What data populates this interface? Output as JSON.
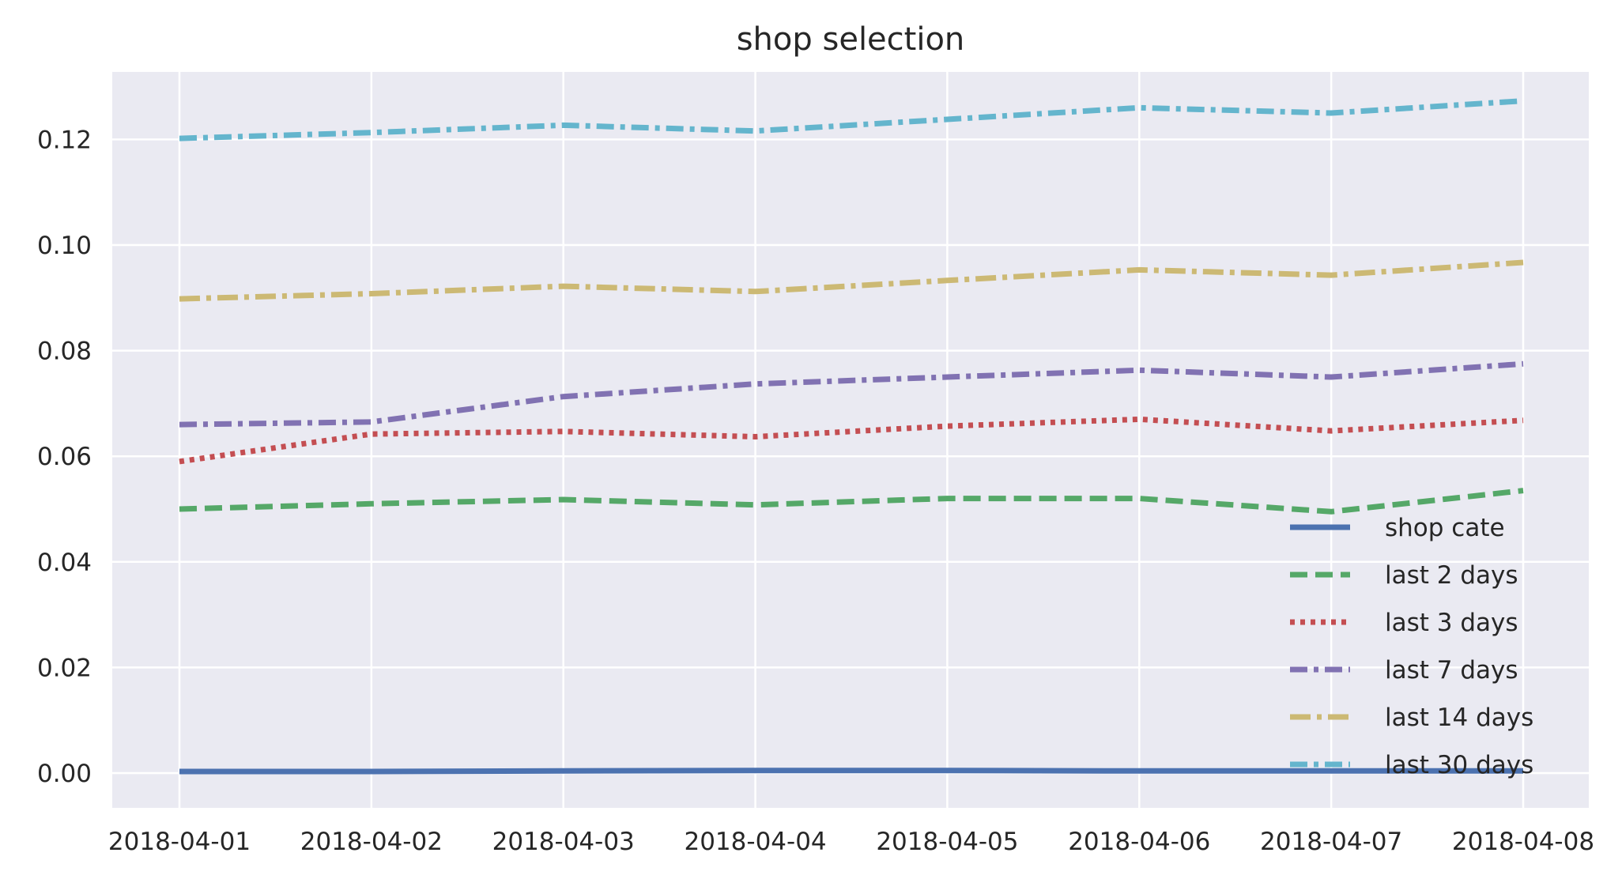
{
  "chart_data": {
    "type": "line",
    "title": "shop selection",
    "xlabel": "",
    "ylabel": "",
    "x": [
      "2018-04-01",
      "2018-04-02",
      "2018-04-03",
      "2018-04-04",
      "2018-04-05",
      "2018-04-06",
      "2018-04-07",
      "2018-04-08"
    ],
    "yticks": [
      "0.00",
      "0.02",
      "0.04",
      "0.06",
      "0.08",
      "0.10",
      "0.12"
    ],
    "ylim": [
      -0.006,
      0.1335
    ],
    "grid": true,
    "legend_position": "lower right",
    "series": [
      {
        "name": "shop cate",
        "color": "#4c72b0",
        "linestyle": "solid",
        "values": [
          0.0003,
          0.0003,
          0.0004,
          0.0005,
          0.0005,
          0.0004,
          0.0004,
          0.0004
        ]
      },
      {
        "name": "last 2 days",
        "color": "#55a868",
        "linestyle": "dashed",
        "values": [
          0.05,
          0.051,
          0.0518,
          0.0508,
          0.052,
          0.052,
          0.0495,
          0.0535
        ]
      },
      {
        "name": "last 3 days",
        "color": "#c44e52",
        "linestyle": "dotted",
        "values": [
          0.059,
          0.0642,
          0.0647,
          0.0637,
          0.0657,
          0.067,
          0.0648,
          0.0668
        ]
      },
      {
        "name": "last 7 days",
        "color": "#8172b2",
        "linestyle": "dashdot",
        "values": [
          0.066,
          0.0665,
          0.0713,
          0.0737,
          0.075,
          0.0763,
          0.075,
          0.0775
        ]
      },
      {
        "name": "last 14 days",
        "color": "#ccb974",
        "linestyle": "dashdot-long",
        "values": [
          0.0898,
          0.0908,
          0.0922,
          0.0912,
          0.0933,
          0.0953,
          0.0943,
          0.0967
        ]
      },
      {
        "name": "last 30 days",
        "color": "#64b5cd",
        "linestyle": "dashdot",
        "values": [
          0.1202,
          0.1213,
          0.1227,
          0.1216,
          0.1238,
          0.126,
          0.125,
          0.1273
        ]
      }
    ]
  }
}
